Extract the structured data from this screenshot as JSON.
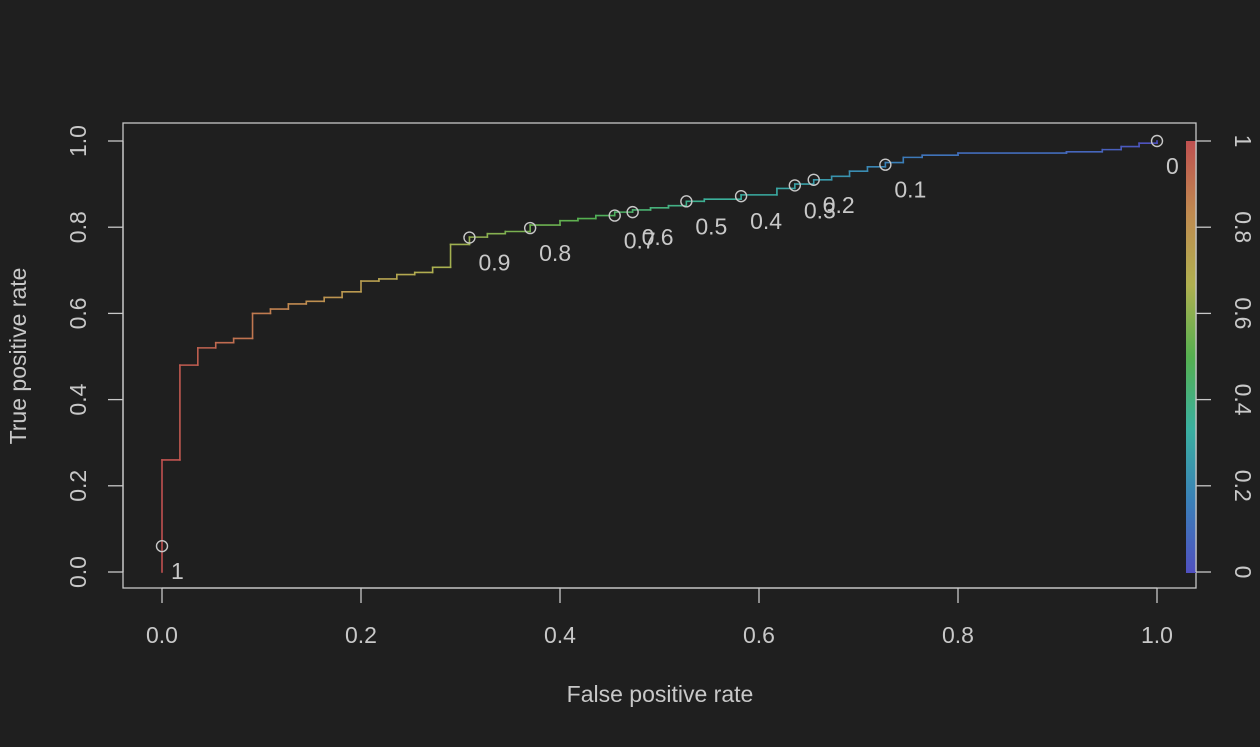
{
  "chart_data": {
    "type": "line",
    "subtype": "roc-curve",
    "title": "",
    "xlabel": "False positive rate",
    "ylabel": "True positive rate",
    "xlim": [
      0,
      1
    ],
    "ylim": [
      0,
      1
    ],
    "x_ticks": [
      "0.0",
      "0.2",
      "0.4",
      "0.6",
      "0.8",
      "1.0"
    ],
    "y_ticks": [
      "0.0",
      "0.2",
      "0.4",
      "0.6",
      "0.8",
      "1.0"
    ],
    "grid": false,
    "colorbar": {
      "range": [
        0,
        1
      ],
      "ticks": [
        "0",
        "0.2",
        "0.4",
        "0.6",
        "0.8",
        "1"
      ],
      "colors": [
        "#5050c0",
        "#3a80b8",
        "#3ab0a0",
        "#55b050",
        "#b0b050",
        "#c08a50",
        "#c05050"
      ]
    },
    "series": [
      {
        "x": [
          0.0,
          0.0,
          0.018,
          0.018,
          0.036,
          0.036,
          0.054,
          0.054,
          0.072,
          0.072,
          0.091,
          0.091,
          0.109,
          0.109,
          0.127,
          0.127,
          0.145,
          0.145,
          0.163,
          0.163,
          0.181,
          0.181,
          0.2,
          0.2,
          0.218,
          0.218,
          0.236,
          0.236,
          0.254,
          0.254,
          0.272,
          0.272,
          0.29,
          0.29,
          0.309,
          0.309,
          0.327,
          0.327,
          0.345,
          0.345,
          0.37,
          0.37,
          0.4,
          0.4,
          0.418,
          0.418,
          0.436,
          0.436,
          0.455,
          0.455,
          0.473,
          0.473,
          0.491,
          0.491,
          0.509,
          0.509,
          0.527,
          0.527,
          0.545,
          0.545,
          0.582,
          0.582,
          0.618,
          0.618,
          0.636,
          0.636,
          0.655,
          0.655,
          0.673,
          0.673,
          0.691,
          0.691,
          0.709,
          0.709,
          0.727,
          0.727,
          0.745,
          0.745,
          0.764,
          0.764,
          0.8,
          0.8,
          0.909,
          0.909,
          0.945,
          0.945,
          0.964,
          0.964,
          0.982,
          0.982,
          1.0,
          1.0
        ],
        "y": [
          0.0,
          0.26,
          0.26,
          0.48,
          0.48,
          0.52,
          0.52,
          0.532,
          0.532,
          0.542,
          0.542,
          0.6,
          0.6,
          0.61,
          0.61,
          0.622,
          0.622,
          0.628,
          0.628,
          0.637,
          0.637,
          0.65,
          0.65,
          0.675,
          0.675,
          0.68,
          0.68,
          0.69,
          0.69,
          0.695,
          0.695,
          0.707,
          0.707,
          0.76,
          0.76,
          0.777,
          0.777,
          0.785,
          0.785,
          0.79,
          0.79,
          0.805,
          0.805,
          0.815,
          0.815,
          0.82,
          0.82,
          0.827,
          0.827,
          0.835,
          0.835,
          0.84,
          0.84,
          0.845,
          0.845,
          0.85,
          0.85,
          0.86,
          0.86,
          0.865,
          0.865,
          0.875,
          0.875,
          0.89,
          0.89,
          0.9,
          0.9,
          0.91,
          0.91,
          0.918,
          0.918,
          0.93,
          0.93,
          0.94,
          0.94,
          0.95,
          0.95,
          0.962,
          0.962,
          0.967,
          0.967,
          0.972,
          0.972,
          0.975,
          0.975,
          0.98,
          0.98,
          0.987,
          0.987,
          0.995,
          0.995,
          1.0
        ]
      }
    ],
    "cutoff_points": [
      {
        "x": 0.0,
        "y": 0.06,
        "label": "1"
      },
      {
        "x": 0.309,
        "y": 0.776,
        "label": "0.9"
      },
      {
        "x": 0.37,
        "y": 0.798,
        "label": "0.8"
      },
      {
        "x": 0.455,
        "y": 0.827,
        "label": "0.7"
      },
      {
        "x": 0.473,
        "y": 0.835,
        "label": "0.6"
      },
      {
        "x": 0.527,
        "y": 0.86,
        "label": "0.5"
      },
      {
        "x": 0.582,
        "y": 0.872,
        "label": "0.4"
      },
      {
        "x": 0.636,
        "y": 0.897,
        "label": "0.3"
      },
      {
        "x": 0.655,
        "y": 0.91,
        "label": "0.2"
      },
      {
        "x": 0.727,
        "y": 0.945,
        "label": "0.1"
      },
      {
        "x": 1.0,
        "y": 1.0,
        "label": "0"
      }
    ]
  }
}
